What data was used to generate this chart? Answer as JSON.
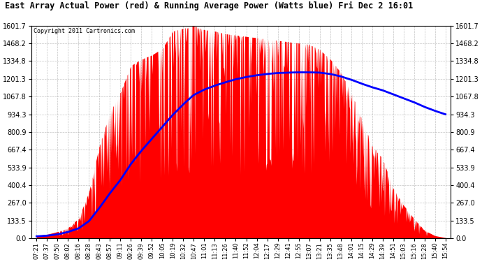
{
  "title": "East Array Actual Power (red) & Running Average Power (Watts blue) Fri Dec 2 16:01",
  "copyright": "Copyright 2011 Cartronics.com",
  "ymin": 0.0,
  "ymax": 1601.7,
  "ytick_values": [
    0.0,
    133.5,
    267.0,
    400.4,
    533.9,
    667.4,
    800.9,
    934.3,
    1067.8,
    1201.3,
    1334.8,
    1468.2,
    1601.7
  ],
  "bar_color": "#ff0000",
  "avg_color": "#0000ff",
  "background_color": "#ffffff",
  "grid_color": "#aaaaaa",
  "xtick_labels": [
    "07:21",
    "07:37",
    "07:50",
    "08:02",
    "08:16",
    "08:28",
    "08:43",
    "08:57",
    "09:11",
    "09:26",
    "09:39",
    "09:52",
    "10:05",
    "10:19",
    "10:32",
    "10:47",
    "11:01",
    "11:13",
    "11:26",
    "11:40",
    "11:52",
    "12:04",
    "12:17",
    "12:29",
    "12:41",
    "12:55",
    "13:07",
    "13:21",
    "13:35",
    "13:48",
    "14:01",
    "14:15",
    "14:29",
    "14:39",
    "14:51",
    "15:03",
    "15:16",
    "15:28",
    "15:40",
    "15:54"
  ],
  "actual_power": [
    20,
    30,
    50,
    80,
    150,
    350,
    700,
    950,
    1100,
    1300,
    1350,
    1380,
    1430,
    1560,
    1580,
    1600,
    1570,
    1560,
    1540,
    1530,
    1520,
    1510,
    1500,
    1490,
    1480,
    1470,
    1460,
    1420,
    1350,
    1250,
    1100,
    900,
    700,
    600,
    380,
    250,
    150,
    60,
    20,
    5
  ],
  "running_avg": [
    15,
    20,
    30,
    48,
    75,
    130,
    230,
    340,
    440,
    560,
    660,
    750,
    840,
    930,
    1010,
    1080,
    1120,
    1150,
    1175,
    1198,
    1215,
    1228,
    1238,
    1245,
    1248,
    1250,
    1250,
    1248,
    1238,
    1220,
    1195,
    1165,
    1138,
    1115,
    1085,
    1055,
    1025,
    990,
    960,
    934
  ],
  "figwidth": 6.9,
  "figheight": 3.75,
  "dpi": 100
}
